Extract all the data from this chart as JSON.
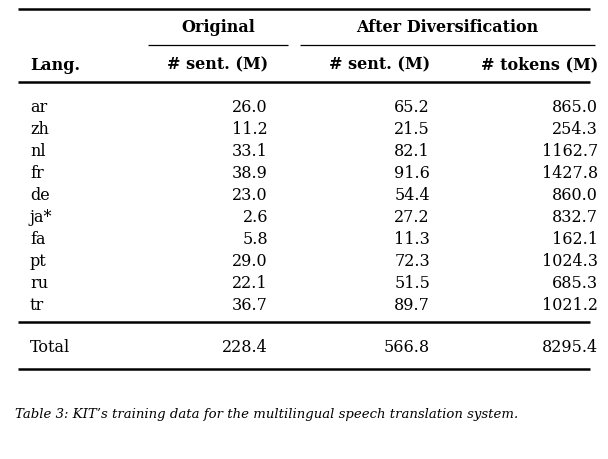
{
  "group_headers": [
    "Original",
    "After Diversification"
  ],
  "col_headers": [
    "Lang.",
    "# sent. (M)",
    "# sent. (M)",
    "# tokens (M)"
  ],
  "rows": [
    [
      "ar",
      "26.0",
      "65.2",
      "865.0"
    ],
    [
      "zh",
      "11.2",
      "21.5",
      "254.3"
    ],
    [
      "nl",
      "33.1",
      "82.1",
      "1162.7"
    ],
    [
      "fr",
      "38.9",
      "91.6",
      "1427.8"
    ],
    [
      "de",
      "23.0",
      "54.4",
      "860.0"
    ],
    [
      "ja*",
      "2.6",
      "27.2",
      "832.7"
    ],
    [
      "fa",
      "5.8",
      "11.3",
      "162.1"
    ],
    [
      "pt",
      "29.0",
      "72.3",
      "1024.3"
    ],
    [
      "ru",
      "22.1",
      "51.5",
      "685.3"
    ],
    [
      "tr",
      "36.7",
      "89.7",
      "1021.2"
    ]
  ],
  "total_row": [
    "Total",
    "228.4",
    "566.8",
    "8295.4"
  ],
  "caption": "Table 3: KIT’s training data for the multilingual speech translation system.",
  "background_color": "#ffffff",
  "text_color": "#000000",
  "font_size": 11.5,
  "header_font_size": 11.5
}
